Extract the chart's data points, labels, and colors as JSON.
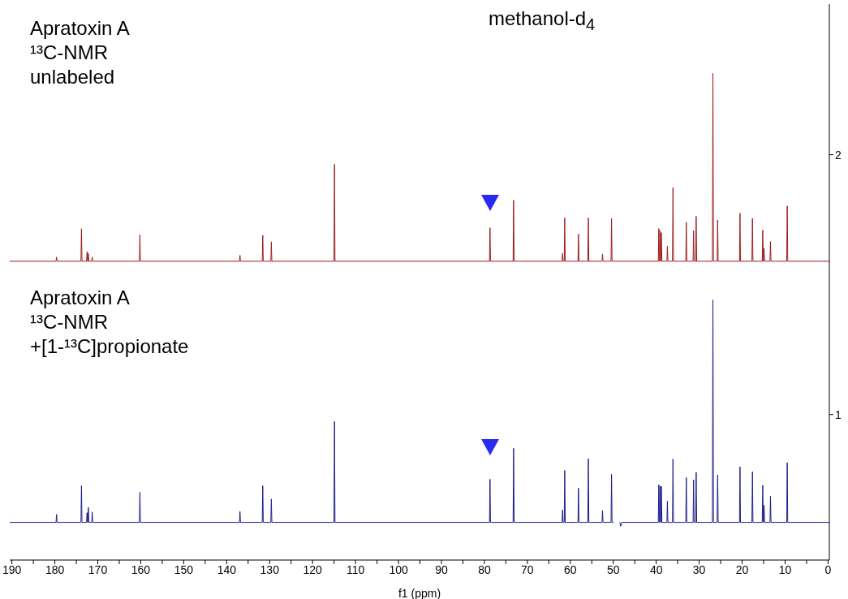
{
  "chart_data": {
    "type": "line",
    "xlabel": "f1 (ppm)",
    "annotations": [
      "Apratoxin A\n¹³C-NMR\nunlabeled",
      "Apratoxin A\n¹³C-NMR\n+[1-¹³C]propionate",
      "methanol-d$_{4}$"
    ],
    "xlim": [
      190.5,
      -0.3
    ],
    "xticks": [
      190,
      {
        "value": 185,
        "label": null
      },
      180,
      {
        "value": 175,
        "label": null
      },
      170,
      {
        "value": 165,
        "label": null
      },
      160,
      {
        "value": 155,
        "label": null
      },
      150,
      {
        "value": 145,
        "label": null
      },
      140,
      {
        "value": 135,
        "label": null
      },
      130,
      {
        "value": 125,
        "label": null
      },
      120,
      {
        "value": 115,
        "label": null
      },
      110,
      {
        "value": 105,
        "label": null
      },
      100,
      {
        "value": 95,
        "label": null
      },
      90,
      {
        "value": 85,
        "label": null
      },
      80,
      {
        "value": 75,
        "label": null
      },
      70,
      {
        "value": 65,
        "label": null
      },
      60,
      {
        "value": 55,
        "label": null
      },
      50,
      {
        "value": 45,
        "label": null
      },
      40,
      {
        "value": 35,
        "label": null
      },
      30,
      {
        "value": 25,
        "label": null
      },
      20,
      {
        "value": 15,
        "label": null
      },
      10,
      {
        "value": 5,
        "label": null
      },
      0
    ],
    "ylim": [
      0.44,
      2.58
    ],
    "yticks": [
      1,
      2
    ],
    "grid": false,
    "legend": false,
    "marker": "none",
    "line_style": "solid",
    "series": [
      {
        "color": "#9b1c1c",
        "x": [
          190.5,
          179.72,
          179.6,
          179.48,
          173.92,
          173.8,
          173.68,
          172.62,
          172.5,
          172.38,
          172.32,
          172.2,
          172.08,
          171.42,
          171.3,
          171.18,
          160.32,
          160.2,
          160.08,
          137.02,
          136.9,
          136.78,
          131.72,
          131.6,
          131.48,
          129.72,
          129.6,
          129.48,
          115.02,
          114.9,
          114.78,
          78.82,
          78.7,
          78.58,
          73.32,
          73.2,
          73.08,
          61.92,
          61.8,
          61.68,
          61.42,
          61.3,
          61.18,
          58.22,
          58.1,
          57.98,
          55.92,
          55.8,
          55.68,
          52.62,
          52.5,
          52.38,
          50.52,
          50.4,
          50.28,
          39.52,
          39.4,
          39.28,
          39.22,
          39.1,
          38.98,
          38.92,
          38.8,
          38.68,
          37.52,
          37.4,
          37.28,
          36.22,
          36.1,
          35.98,
          33.12,
          33.0,
          32.88,
          31.42,
          31.3,
          31.18,
          30.82,
          30.7,
          30.58,
          26.92,
          26.8,
          26.68,
          25.82,
          25.7,
          25.58,
          20.62,
          20.5,
          20.38,
          17.72,
          17.6,
          17.48,
          15.32,
          15.2,
          15.08,
          15.02,
          14.9,
          14.78,
          13.52,
          13.4,
          13.28,
          9.62,
          9.5,
          9.38,
          -0.3
        ],
        "values": [
          1.59,
          1.59,
          1.606,
          1.59,
          1.59,
          1.715,
          1.59,
          1.59,
          1.627,
          1.59,
          1.59,
          1.62,
          1.59,
          1.59,
          1.606,
          1.59,
          1.59,
          1.692,
          1.59,
          1.59,
          1.613,
          1.59,
          1.59,
          1.69,
          1.59,
          1.59,
          1.665,
          1.59,
          1.59,
          1.963,
          1.59,
          1.59,
          1.719,
          1.59,
          1.59,
          1.825,
          1.59,
          1.59,
          1.62,
          1.59,
          1.59,
          1.757,
          1.59,
          1.59,
          1.695,
          1.59,
          1.59,
          1.757,
          1.59,
          1.59,
          1.618,
          1.59,
          1.59,
          1.755,
          1.59,
          1.59,
          1.716,
          1.59,
          1.59,
          1.708,
          1.59,
          1.59,
          1.7,
          1.59,
          1.59,
          1.648,
          1.59,
          1.59,
          1.874,
          1.59,
          1.59,
          1.74,
          1.59,
          1.59,
          1.708,
          1.59,
          1.59,
          1.763,
          1.59,
          1.59,
          2.313,
          1.59,
          1.59,
          1.749,
          1.59,
          1.59,
          1.775,
          1.59,
          1.59,
          1.755,
          1.59,
          1.59,
          1.71,
          1.59,
          1.59,
          1.64,
          1.59,
          1.59,
          1.666,
          1.59,
          1.59,
          1.803,
          1.59,
          1.59
        ]
      },
      {
        "color": "#1c1c8c",
        "x": [
          190.5,
          179.72,
          179.6,
          179.48,
          173.92,
          173.8,
          173.68,
          172.62,
          172.5,
          172.38,
          172.32,
          172.2,
          172.08,
          171.42,
          171.3,
          171.18,
          160.32,
          160.2,
          160.08,
          137.02,
          136.9,
          136.78,
          131.72,
          131.6,
          131.48,
          129.72,
          129.6,
          129.48,
          115.02,
          114.9,
          114.78,
          78.82,
          78.7,
          78.58,
          73.32,
          73.2,
          73.08,
          61.92,
          61.8,
          61.68,
          61.42,
          61.3,
          61.18,
          58.22,
          58.1,
          57.98,
          55.92,
          55.8,
          55.68,
          52.62,
          52.5,
          52.38,
          50.52,
          50.4,
          50.28,
          49.9,
          49.3,
          48.45,
          48.3,
          48.0,
          39.52,
          39.4,
          39.28,
          39.22,
          39.1,
          38.98,
          38.92,
          38.8,
          38.68,
          37.52,
          37.4,
          37.28,
          36.22,
          36.1,
          35.98,
          33.12,
          33.0,
          32.88,
          31.42,
          31.3,
          31.18,
          30.82,
          30.7,
          30.58,
          26.92,
          26.8,
          26.68,
          25.82,
          25.7,
          25.58,
          20.62,
          20.5,
          20.38,
          17.72,
          17.6,
          17.48,
          15.32,
          15.2,
          15.08,
          15.02,
          14.9,
          14.78,
          13.52,
          13.4,
          13.28,
          9.62,
          9.5,
          9.38,
          -0.3
        ],
        "values": [
          0.585,
          0.585,
          0.616,
          0.585,
          0.585,
          0.726,
          0.585,
          0.585,
          0.622,
          0.585,
          0.585,
          0.643,
          0.585,
          0.585,
          0.625,
          0.585,
          0.585,
          0.701,
          0.585,
          0.585,
          0.627,
          0.585,
          0.585,
          0.726,
          0.585,
          0.585,
          0.675,
          0.585,
          0.585,
          0.973,
          0.585,
          0.585,
          0.751,
          0.585,
          0.585,
          0.87,
          0.585,
          0.585,
          0.633,
          0.585,
          0.585,
          0.785,
          0.585,
          0.585,
          0.717,
          0.585,
          0.585,
          0.83,
          0.585,
          0.585,
          0.631,
          0.585,
          0.585,
          0.77,
          0.585,
          0.585,
          null,
          0.585,
          0.57,
          0.585,
          0.585,
          0.73,
          0.585,
          0.585,
          0.724,
          0.585,
          0.585,
          0.724,
          0.585,
          0.585,
          0.667,
          0.585,
          0.585,
          0.829,
          0.585,
          0.585,
          0.758,
          0.585,
          0.585,
          0.749,
          0.585,
          0.585,
          0.778,
          0.585,
          0.585,
          1.441,
          0.585,
          0.585,
          0.768,
          0.585,
          0.585,
          0.799,
          0.585,
          0.585,
          0.78,
          0.585,
          0.585,
          0.728,
          0.585,
          0.585,
          0.651,
          0.585,
          0.585,
          0.686,
          0.585,
          0.585,
          0.815,
          0.585,
          0.585
        ]
      }
    ]
  }
}
